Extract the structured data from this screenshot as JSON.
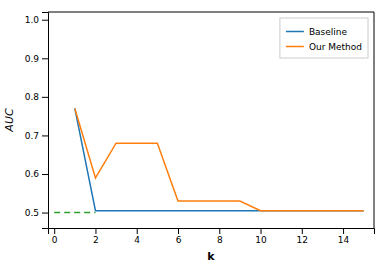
{
  "chart_data": {
    "type": "line",
    "x": [
      1,
      2,
      3,
      4,
      5,
      6,
      7,
      8,
      9,
      10,
      11,
      12,
      13,
      14,
      15
    ],
    "series": [
      {
        "name": "Baseline",
        "color": "#1f77b4",
        "line_style": "solid",
        "values": [
          0.77,
          0.505,
          0.505,
          0.505,
          0.505,
          0.505,
          0.505,
          0.505,
          0.505,
          0.505,
          0.505,
          0.505,
          0.505,
          0.505,
          0.505
        ]
      },
      {
        "name": "Our Method",
        "color": "#ff7f0e",
        "line_style": "solid",
        "values": [
          0.77,
          0.59,
          0.68,
          0.68,
          0.68,
          0.53,
          0.53,
          0.53,
          0.53,
          0.505,
          0.505,
          0.505,
          0.505,
          0.505,
          0.505
        ]
      },
      {
        "color": "#2ca02c",
        "line_style": "dashed",
        "x": [
          0,
          2
        ],
        "values": [
          0.5,
          0.5
        ]
      }
    ],
    "xlabel": "k",
    "ylabel": "AUC",
    "xlim": [
      -0.3,
      15.5
    ],
    "ylim": [
      0.46,
      1.02
    ],
    "xticks": [
      0,
      2,
      4,
      6,
      8,
      10,
      12,
      14
    ],
    "yticks": [
      0.5,
      0.6,
      0.7,
      0.8,
      0.9,
      {
        "value": 1.0,
        "label": "1.0"
      }
    ],
    "grid": false,
    "legend": "upper right"
  }
}
